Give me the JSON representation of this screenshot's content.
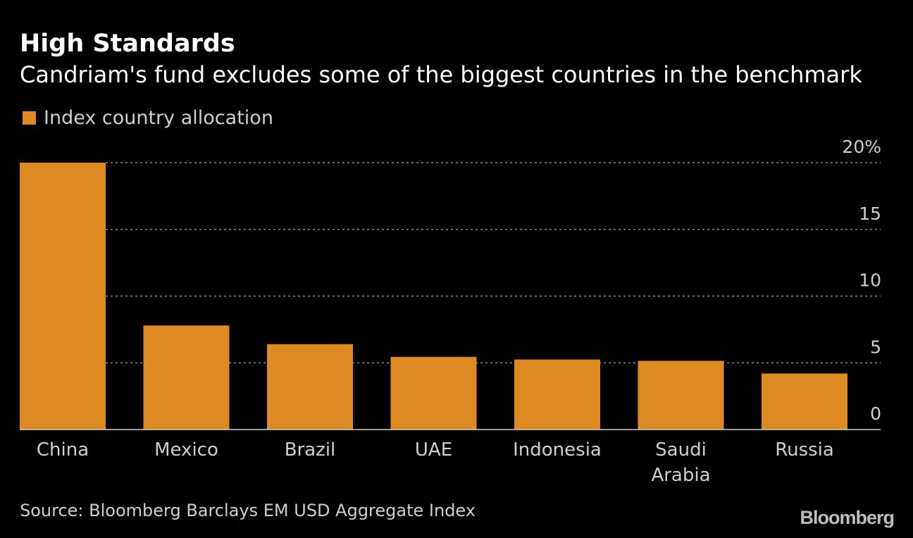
{
  "title": "High Standards",
  "subtitle": "Candriam's fund excludes some of the biggest countries in the benchmark",
  "source": "Source: Bloomberg Barclays EM USD Aggregate Index",
  "logo": "Bloomberg",
  "colors": {
    "background": "#000000",
    "bar": "#dd8a24",
    "grid": "#8a8a8a",
    "text": "#ffffff",
    "muted_text": "#cfcfcf"
  },
  "chart_data": {
    "type": "bar",
    "title": "High Standards",
    "subtitle": "Candriam's fund excludes some of the biggest countries in the benchmark",
    "categories": [
      "China",
      "Mexico",
      "Brazil",
      "UAE",
      "Indonesia",
      "Saudi Arabia",
      "Russia"
    ],
    "category_lines": [
      [
        "China"
      ],
      [
        "Mexico"
      ],
      [
        "Brazil"
      ],
      [
        "UAE"
      ],
      [
        "Indonesia"
      ],
      [
        "Saudi",
        "Arabia"
      ],
      [
        "Russia"
      ]
    ],
    "series": [
      {
        "name": "Index country allocation",
        "values": [
          20.0,
          7.8,
          6.4,
          5.45,
          5.25,
          5.15,
          4.2
        ]
      }
    ],
    "xlabel": "",
    "ylabel": "",
    "ylim": [
      0,
      20
    ],
    "yticks": [
      0,
      5,
      10,
      15,
      20
    ],
    "ytick_labels": [
      "0",
      "5",
      "10",
      "15",
      "20%"
    ],
    "y_axis_position": "right",
    "grid": true,
    "legend_position": "top-left"
  }
}
